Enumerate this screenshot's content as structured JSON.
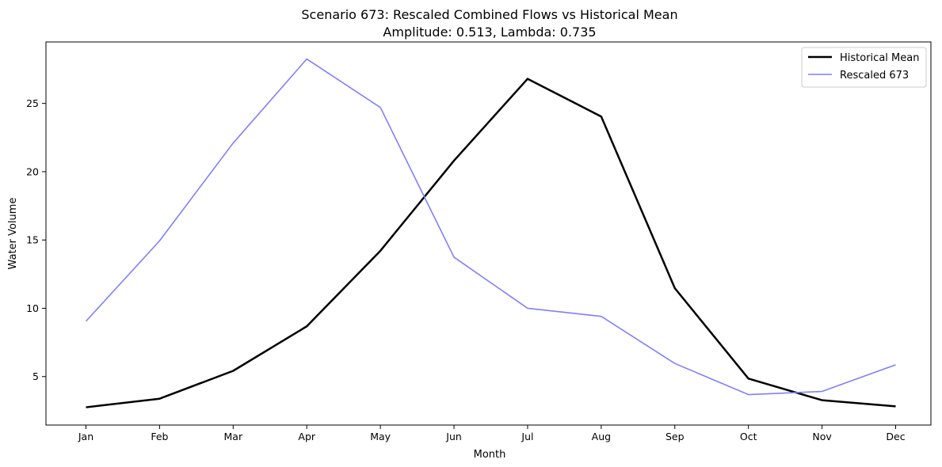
{
  "chart_data": {
    "type": "line",
    "title": "Scenario 673: Rescaled Combined Flows vs Historical Mean",
    "subtitle": "Amplitude: 0.513, Lambda: 0.735",
    "xlabel": "Month",
    "ylabel": "Water Volume",
    "categories": [
      "Jan",
      "Feb",
      "Mar",
      "Apr",
      "May",
      "Jun",
      "Jul",
      "Aug",
      "Sep",
      "Oct",
      "Nov",
      "Dec"
    ],
    "yticks": [
      5,
      10,
      15,
      20,
      25
    ],
    "ylim": [
      1.45,
      29.5
    ],
    "grid": false,
    "legend_position": "top-right",
    "series": [
      {
        "name": "Historical Mean",
        "color": "#000000",
        "values": [
          2.75,
          3.38,
          5.42,
          8.68,
          14.21,
          20.81,
          26.8,
          24.04,
          11.47,
          4.85,
          3.27,
          2.82
        ]
      },
      {
        "name": "Rescaled 673",
        "color": "#7f7fff",
        "values": [
          9.05,
          14.94,
          22.1,
          28.25,
          24.7,
          13.74,
          10.0,
          9.41,
          5.96,
          3.68,
          3.91,
          5.86
        ]
      }
    ]
  }
}
